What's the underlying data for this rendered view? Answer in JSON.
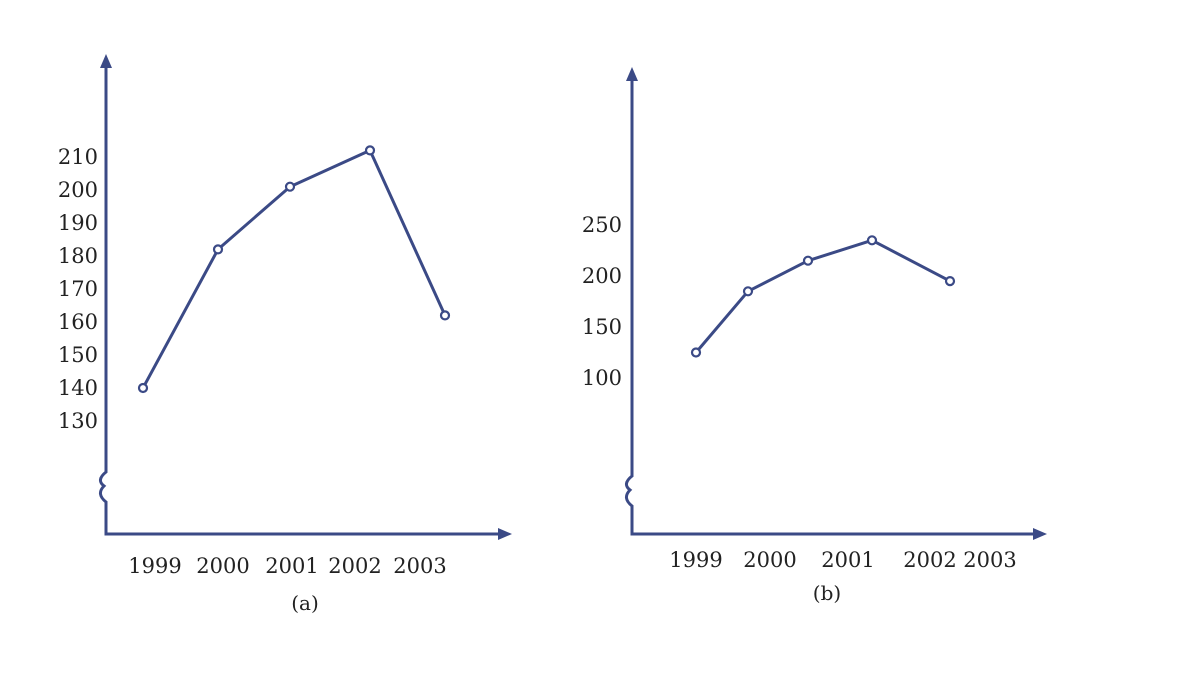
{
  "chart_data": [
    {
      "type": "line",
      "caption": "(a)",
      "categories": [
        "1999",
        "2000",
        "2001",
        "2002",
        "2003"
      ],
      "series": [
        {
          "values": [
            140,
            182,
            201,
            212,
            162
          ]
        }
      ],
      "y_ticks": [
        130,
        140,
        150,
        160,
        170,
        180,
        190,
        200,
        210
      ],
      "axis_break": "y",
      "grid": false,
      "legend": "none",
      "xlabel": "",
      "ylabel": ""
    },
    {
      "type": "line",
      "caption": "(b)",
      "categories": [
        "1999",
        "2000",
        "2001",
        "2002",
        "2003"
      ],
      "series": [
        {
          "values": [
            125,
            185,
            215,
            235,
            195
          ]
        }
      ],
      "y_ticks": [
        100,
        150,
        200,
        250
      ],
      "axis_break": "y",
      "grid": false,
      "legend": "none",
      "xlabel": "",
      "ylabel": ""
    }
  ]
}
